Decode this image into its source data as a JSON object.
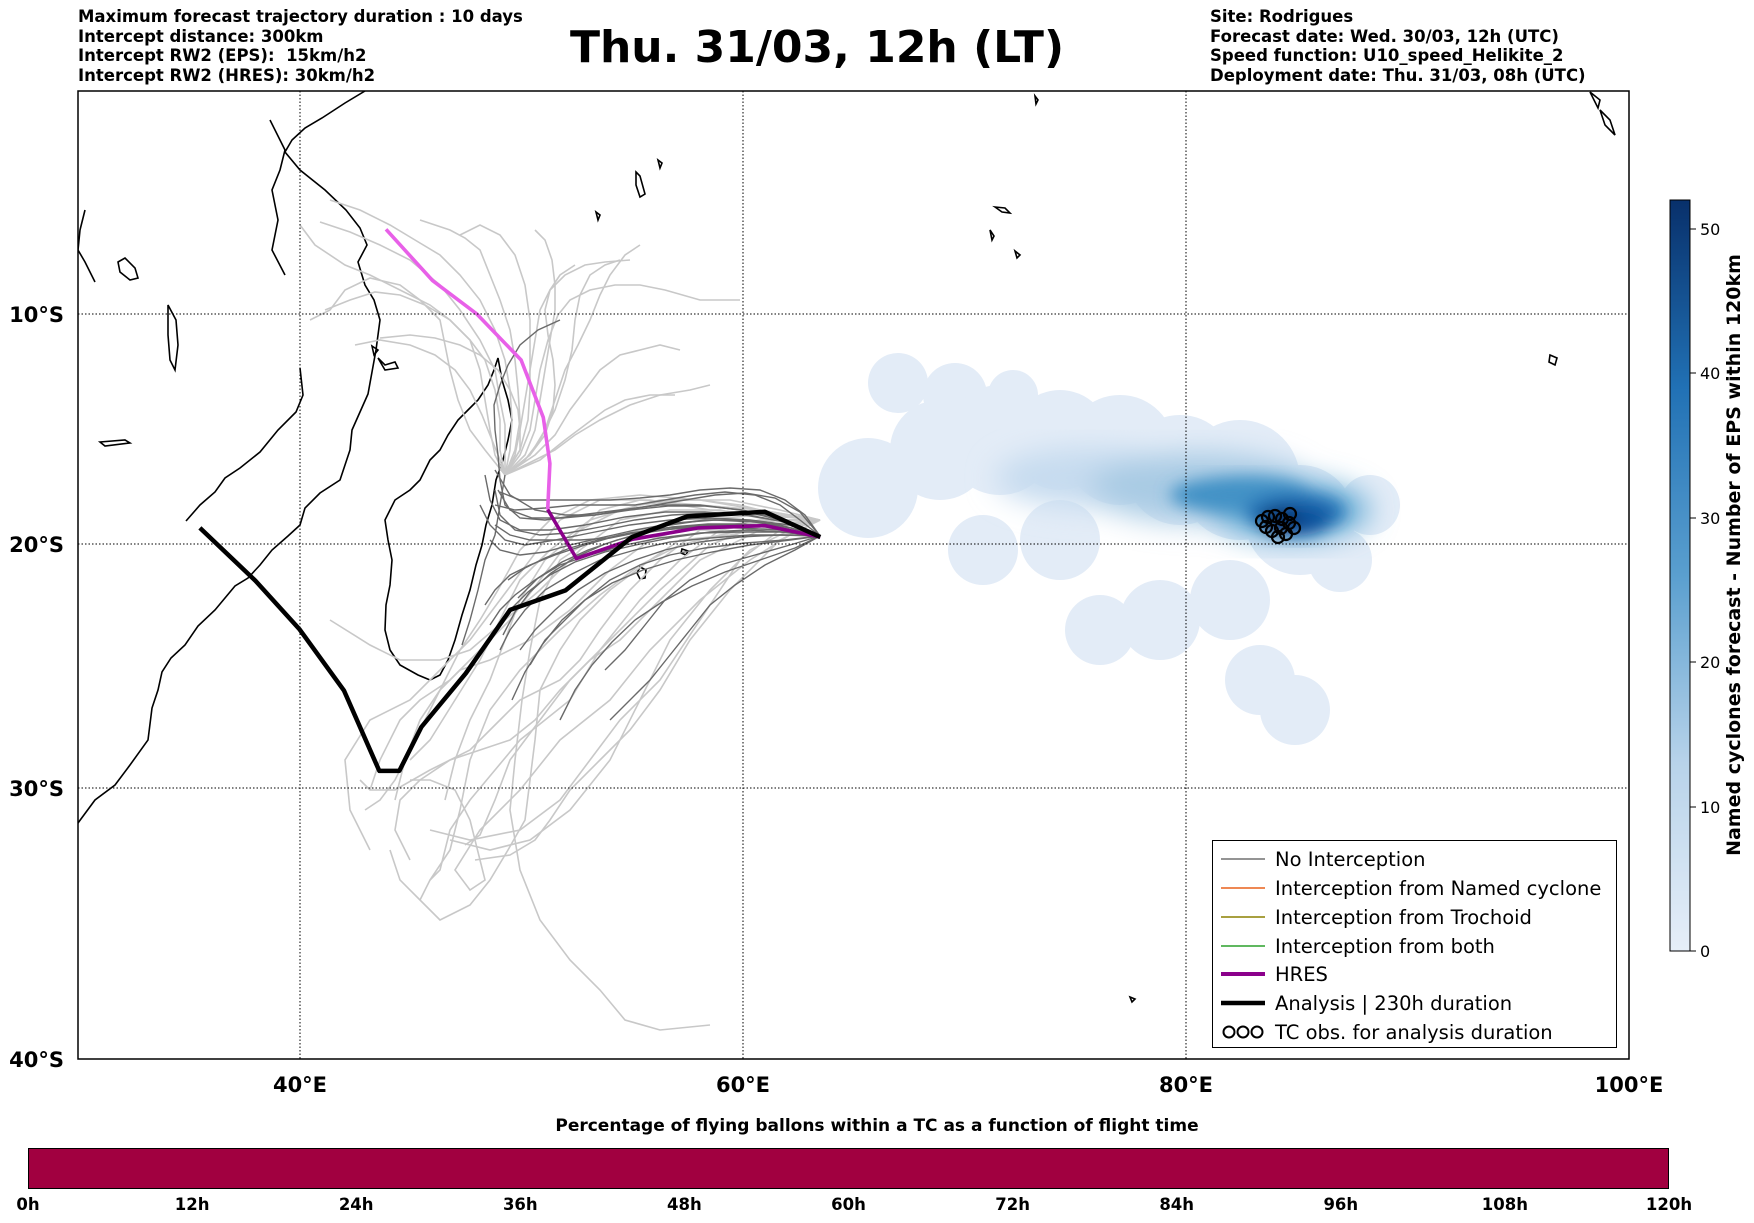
{
  "header_left": [
    "Maximum forecast trajectory duration : 10 days",
    "Intercept distance: 300km",
    "Intercept RW2 (EPS):  15km/h2",
    "Intercept RW2 (HRES): 30km/h2"
  ],
  "header_right": [
    "Site: Rodrigues",
    "Forecast date: Wed. 30/03, 12h (UTC)",
    "Speed function: U10_speed_Helikite_2",
    "Deployment date: Thu. 31/03, 08h (UTC)"
  ],
  "title": "Thu. 31/03, 12h (LT)",
  "map": {
    "lon_range": [
      30,
      100
    ],
    "lat_range": [
      -40,
      0
    ],
    "lat_ticks": [
      "10°S",
      "20°S",
      "30°S",
      "40°S"
    ],
    "lon_ticks": [
      "40°E",
      "60°E",
      "80°E",
      "100°E"
    ],
    "grid": true,
    "site": "Rodrigues"
  },
  "legend": {
    "position": "bottom-right",
    "items": [
      {
        "label": "No Interception",
        "color": "#707070",
        "style": "thin-line"
      },
      {
        "label": "Interception from Named cyclone",
        "color": "#e8601c",
        "style": "thin-line"
      },
      {
        "label": "Interception from Trochoid",
        "color": "#8b8000",
        "style": "thin-line"
      },
      {
        "label": "Interception from both",
        "color": "#2ca02c",
        "style": "thin-line"
      },
      {
        "label": "HRES",
        "color": "#8b008b",
        "style": "thick-line"
      },
      {
        "label": "Analysis | 230h duration",
        "color": "#000000",
        "style": "thick-line"
      },
      {
        "label": "TC obs. for analysis duration",
        "color": "#000000",
        "style": "markers"
      }
    ]
  },
  "colorbar": {
    "label": "Named cyclones forecast - Number of EPS within 120km",
    "range": [
      0,
      52
    ],
    "ticks": [
      "0",
      "10",
      "20",
      "30",
      "40",
      "50"
    ],
    "color_low": "#e6eef8",
    "color_high": "#08306b"
  },
  "flight_time_bar": {
    "title": "Percentage of flying ballons within a TC as a function of flight time",
    "color": "#a10040",
    "ticks": [
      "0h",
      "12h",
      "24h",
      "36h",
      "48h",
      "60h",
      "72h",
      "84h",
      "96h",
      "108h",
      "120h"
    ]
  },
  "chart_data": {
    "type": "map-trajectories",
    "hres_track": [
      [
        43.9,
        -6.2
      ],
      [
        46,
        -8.5
      ],
      [
        48,
        -10
      ],
      [
        50,
        -12
      ],
      [
        51,
        -14.5
      ],
      [
        51.3,
        -16.5
      ],
      [
        51.2,
        -18.5
      ],
      [
        52.5,
        -20.6
      ],
      [
        55,
        -19.8
      ],
      [
        58,
        -19.3
      ],
      [
        61,
        -19.2
      ],
      [
        63.5,
        -19.7
      ]
    ],
    "analysis_track": [
      [
        35.5,
        -19.3
      ],
      [
        38,
        -21.5
      ],
      [
        40,
        -23.5
      ],
      [
        42,
        -26
      ],
      [
        43.6,
        -29.3
      ],
      [
        44.5,
        -29.3
      ],
      [
        45.5,
        -27.5
      ],
      [
        47.5,
        -25.3
      ],
      [
        49.5,
        -22.7
      ],
      [
        52,
        -21.9
      ],
      [
        55,
        -19.7
      ],
      [
        57.5,
        -18.8
      ],
      [
        61,
        -18.6
      ],
      [
        63.5,
        -19.7
      ]
    ],
    "tc_obs_lon_range": [
      83.2,
      84.4
    ],
    "tc_obs_lat_range": [
      -19.8,
      -18.9
    ],
    "density_max_location": [
      83.5,
      -19.3
    ]
  }
}
